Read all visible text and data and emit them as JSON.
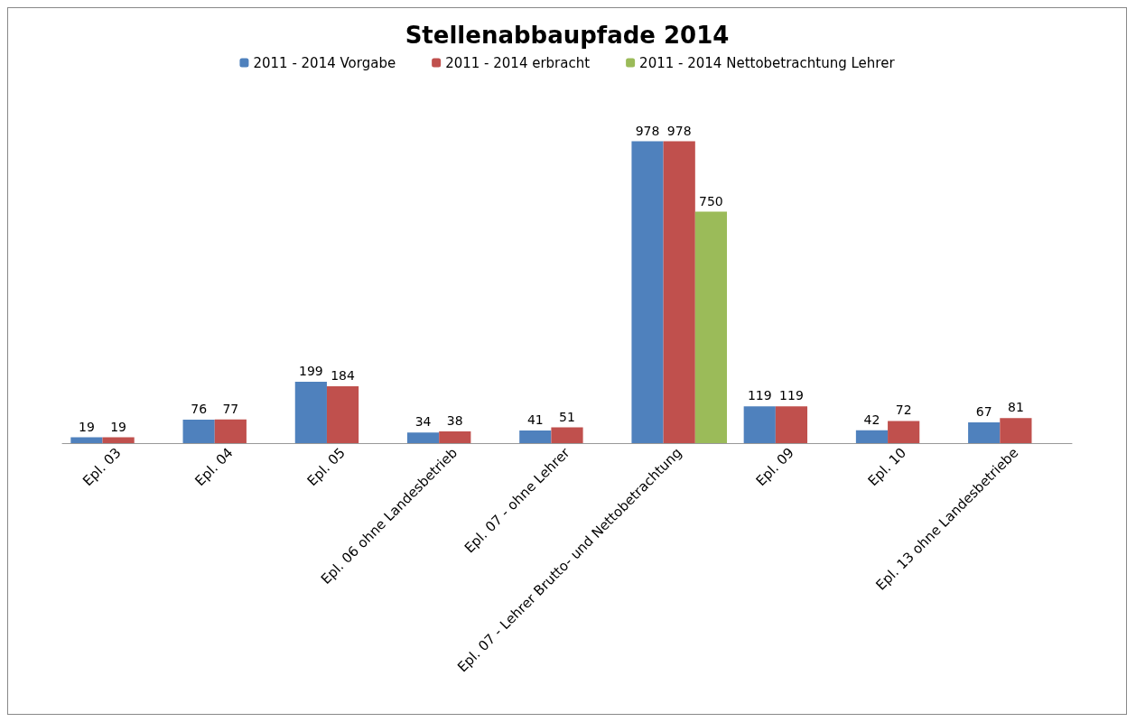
{
  "chart_data": {
    "type": "bar",
    "title": "Stellenabbaupfade 2014",
    "categories": [
      "Epl. 03",
      "Epl. 04",
      "Epl. 05",
      "Epl. 06 ohne Landesbetrieb",
      "Epl. 07 - ohne Lehrer",
      "Epl. 07 - Lehrer Brutto- und Nettobetrachtung",
      "Epl. 09",
      "Epl. 10",
      "Epl. 13 ohne Landesbetriebe"
    ],
    "series": [
      {
        "name": "2011 - 2014 Vorgabe",
        "color": "#4f81bd",
        "values": [
          19,
          76,
          199,
          34,
          41,
          978,
          119,
          42,
          67
        ]
      },
      {
        "name": "2011 - 2014 erbracht",
        "color": "#c0504d",
        "values": [
          19,
          77,
          184,
          38,
          51,
          978,
          119,
          72,
          81
        ]
      },
      {
        "name": "2011 - 2014 Nettobetrachtung Lehrer",
        "color": "#9bbb59",
        "values": [
          null,
          null,
          null,
          null,
          null,
          750,
          null,
          null,
          null
        ]
      }
    ],
    "data_labels": true,
    "legend": "top",
    "grid": false,
    "tick_labels": "x"
  }
}
